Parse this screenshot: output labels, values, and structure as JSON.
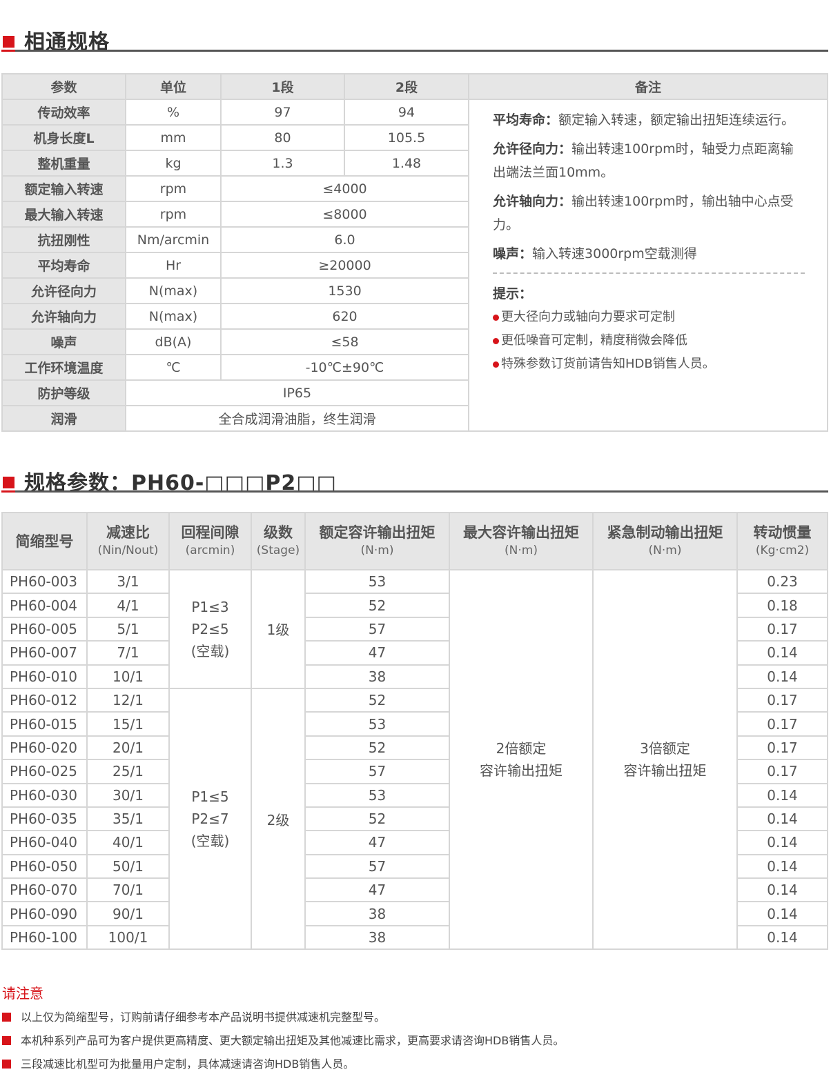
{
  "section1": {
    "title": "相通规格"
  },
  "spec_table": {
    "headers": [
      "参数",
      "单位",
      "1段",
      "2段",
      "备注"
    ],
    "rows": [
      {
        "param": "传动效率",
        "unit": "%",
        "s1": "97",
        "s2": "94"
      },
      {
        "param": "机身长度L",
        "unit": "mm",
        "s1": "80",
        "s2": "105.5"
      },
      {
        "param": "整机重量",
        "unit": "kg",
        "s1": "1.3",
        "s2": "1.48"
      },
      {
        "param": "额定输入转速",
        "unit": "rpm",
        "value": "≤4000"
      },
      {
        "param": "最大输入转速",
        "unit": "rpm",
        "value": "≤8000"
      },
      {
        "param": "抗扭刚性",
        "unit": "Nm/arcmin",
        "value": "6.0"
      },
      {
        "param": "平均寿命",
        "unit": "Hr",
        "value": "≥20000"
      },
      {
        "param": "允许径向力",
        "unit": "N(max)",
        "value": "1530"
      },
      {
        "param": "允许轴向力",
        "unit": "N(max)",
        "value": "620"
      },
      {
        "param": "噪声",
        "unit": "dB(A)",
        "value": "≤58"
      },
      {
        "param": "工作环境温度",
        "unit": "℃",
        "value": "-10℃±90℃"
      },
      {
        "param": "防护等级",
        "value": "IP65"
      },
      {
        "param": "润滑",
        "value": "全合成润滑油脂，终生润滑"
      }
    ],
    "notes": [
      {
        "label": "平均寿命：",
        "text": "额定输入转速，额定输出扭矩连续运行。"
      },
      {
        "label": "允许径向力：",
        "text": "输出转速100rpm时，轴受力点距离输出端法兰面10mm。"
      },
      {
        "label": "允许轴向力：",
        "text": "输出转速100rpm时，输出轴中心点受力。"
      },
      {
        "label": "噪声：",
        "text": "输入转速3000rpm空载测得"
      }
    ],
    "tips_title": "提示：",
    "tips": [
      "更大径向力或轴向力要求可定制",
      "更低噪音可定制，精度稍微会降低",
      "特殊参数订货前请告知HDB销售人员。"
    ]
  },
  "section2": {
    "title": "规格参数：PH60-□□□P2□□"
  },
  "model_table": {
    "headers": [
      {
        "main": "简缩型号"
      },
      {
        "main": "减速比",
        "sub": "(Nin/Nout)"
      },
      {
        "main": "回程间隙",
        "sub": "(arcmin)"
      },
      {
        "main": "级数",
        "sub": "(Stage)"
      },
      {
        "main": "额定容许输出扭矩",
        "sub": "(N·m)"
      },
      {
        "main": "最大容许输出扭矩",
        "sub": "(N·m)"
      },
      {
        "main": "紧急制动输出扭矩",
        "sub": "(N·m)"
      },
      {
        "main": "转动惯量",
        "sub": "(Kg·cm2)"
      }
    ],
    "backlash_1": [
      "P1≤3",
      "P2≤5",
      "(空载)"
    ],
    "stage_1": "1级",
    "backlash_2": [
      "P1≤5",
      "P2≤7",
      "(空载)"
    ],
    "stage_2": "2级",
    "max_torque": [
      "2倍额定",
      "容许输出扭矩"
    ],
    "emergency_torque": [
      "3倍额定",
      "容许输出扭矩"
    ],
    "rows": [
      {
        "model": "PH60-003",
        "ratio": "3/1",
        "torque": "53",
        "inertia": "0.23"
      },
      {
        "model": "PH60-004",
        "ratio": "4/1",
        "torque": "52",
        "inertia": "0.18"
      },
      {
        "model": "PH60-005",
        "ratio": "5/1",
        "torque": "57",
        "inertia": "0.17"
      },
      {
        "model": "PH60-007",
        "ratio": "7/1",
        "torque": "47",
        "inertia": "0.14"
      },
      {
        "model": "PH60-010",
        "ratio": "10/1",
        "torque": "38",
        "inertia": "0.14"
      },
      {
        "model": "PH60-012",
        "ratio": "12/1",
        "torque": "52",
        "inertia": "0.17"
      },
      {
        "model": "PH60-015",
        "ratio": "15/1",
        "torque": "53",
        "inertia": "0.17"
      },
      {
        "model": "PH60-020",
        "ratio": "20/1",
        "torque": "52",
        "inertia": "0.17"
      },
      {
        "model": "PH60-025",
        "ratio": "25/1",
        "torque": "57",
        "inertia": "0.17"
      },
      {
        "model": "PH60-030",
        "ratio": "30/1",
        "torque": "53",
        "inertia": "0.14"
      },
      {
        "model": "PH60-035",
        "ratio": "35/1",
        "torque": "52",
        "inertia": "0.14"
      },
      {
        "model": "PH60-040",
        "ratio": "40/1",
        "torque": "47",
        "inertia": "0.14"
      },
      {
        "model": "PH60-050",
        "ratio": "50/1",
        "torque": "57",
        "inertia": "0.14"
      },
      {
        "model": "PH60-070",
        "ratio": "70/1",
        "torque": "47",
        "inertia": "0.14"
      },
      {
        "model": "PH60-090",
        "ratio": "90/1",
        "torque": "38",
        "inertia": "0.14"
      },
      {
        "model": "PH60-100",
        "ratio": "100/1",
        "torque": "38",
        "inertia": "0.14"
      }
    ]
  },
  "caution": {
    "title": "请注意",
    "items": [
      "以上仅为简缩型号，订购前请仔细参考本产品说明书提供减速机完整型号。",
      "本机种系列产品可为客户提供更高精度、更大额定输出扭矩及其他减速比需求，更高要求请咨询HDB销售人员。",
      "三段减速比机型可为批量用户定制，具体减速请咨询HDB销售人员。"
    ]
  },
  "colors": {
    "accent": "#d7141a",
    "header_bg": "#e6e6e6"
  }
}
